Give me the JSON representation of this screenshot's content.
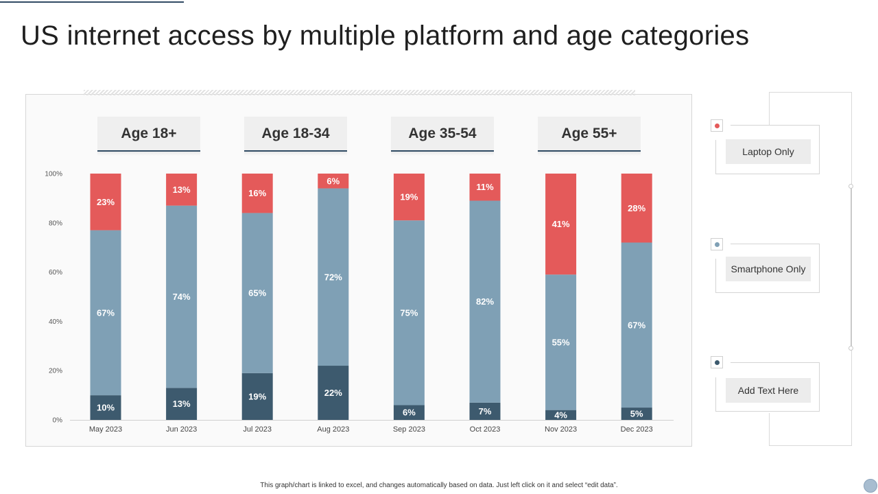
{
  "title": "US internet access by multiple platform and age categories",
  "footer_note": "This graph/chart is linked to excel, and changes automatically based on data. Just left click on it and select “edit data”.",
  "colors": {
    "laptop": "#e45a5a",
    "smartphone": "#7fa0b5",
    "other": "#3d5a6e"
  },
  "group_headers": [
    "Age 18+",
    "Age 18-34",
    "Age 35-54",
    "Age 55+"
  ],
  "legend": [
    {
      "label": "Laptop Only",
      "color": "#e45a5a"
    },
    {
      "label": "Smartphone Only",
      "color": "#7fa0b5"
    },
    {
      "label": "Add Text Here",
      "color": "#3d5a6e"
    }
  ],
  "chart_data": {
    "type": "bar",
    "stacked": true,
    "categories": [
      "May 2023",
      "Jun 2023",
      "Jul 2023",
      "Aug 2023",
      "Sep 2023",
      "Oct 2023",
      "Nov 2023",
      "Dec 2023"
    ],
    "y_ticks": [
      "0%",
      "20%",
      "40%",
      "60%",
      "80%",
      "100%"
    ],
    "ylim": [
      0,
      100
    ],
    "series": [
      {
        "name": "Add Text Here",
        "color": "#3d5a6e",
        "values": [
          10,
          13,
          19,
          22,
          6,
          7,
          4,
          5
        ],
        "labels": [
          "10%",
          "13%",
          "19%",
          "22%",
          "6%",
          "7%",
          "4%",
          "5%"
        ]
      },
      {
        "name": "Smartphone Only",
        "color": "#7fa0b5",
        "values": [
          67,
          74,
          65,
          72,
          75,
          82,
          55,
          67
        ],
        "labels": [
          "67%",
          "74%",
          "65%",
          "72%",
          "75%",
          "82%",
          "55%",
          "67%"
        ]
      },
      {
        "name": "Laptop Only",
        "color": "#e45a5a",
        "values": [
          23,
          13,
          16,
          6,
          19,
          11,
          41,
          28
        ],
        "labels": [
          "23%",
          "13%",
          "16%",
          "6%",
          "19%",
          "11%",
          "41%",
          "28%"
        ]
      }
    ]
  }
}
